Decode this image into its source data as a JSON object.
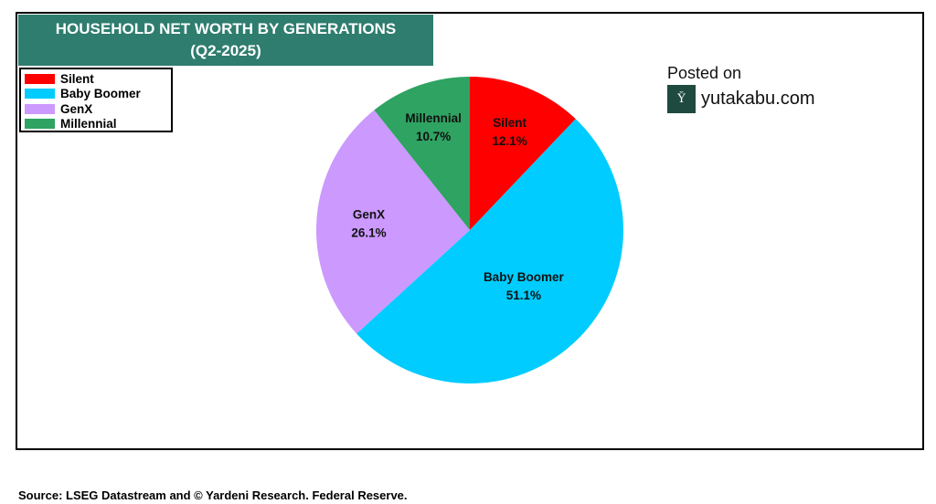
{
  "chart_data": {
    "type": "pie",
    "title": "HOUSEHOLD NET WORTH BY GENERATIONS",
    "subtitle": "(Q2-2025)",
    "categories": [
      "Silent",
      "Baby Boomer",
      "GenX",
      "Millennial"
    ],
    "values": [
      12.1,
      51.1,
      26.1,
      10.7
    ],
    "value_labels": [
      "12.1%",
      "51.1%",
      "26.1%",
      "10.7%"
    ],
    "colors": [
      "#ff0000",
      "#00ccff",
      "#cc99ff",
      "#2fa362"
    ],
    "legend": "top-left"
  },
  "watermark": {
    "posted": "Posted on",
    "site": "yutakabu.com",
    "logo_text": "YK"
  },
  "source": "Source: LSEG Datastream and © Yardeni Research. Federal Reserve."
}
